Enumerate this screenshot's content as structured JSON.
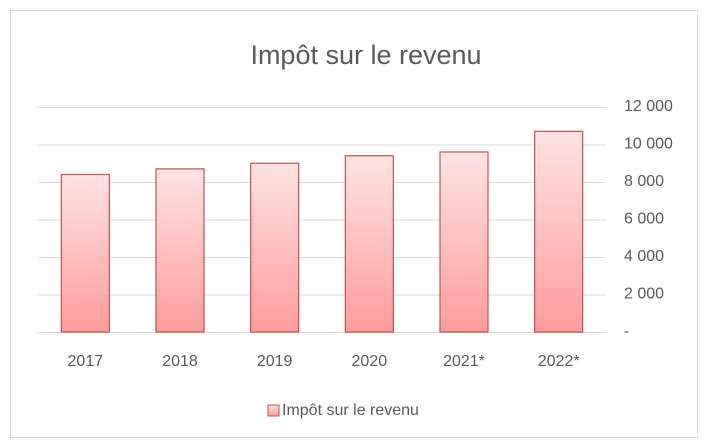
{
  "chart_data": {
    "type": "bar",
    "title": "Impôt sur le revenu",
    "categories": [
      "2017",
      "2018",
      "2019",
      "2020",
      "2021*",
      "2022*"
    ],
    "series": [
      {
        "name": "Impôt sur le revenu",
        "color": "#c0504d",
        "values": [
          8400,
          8700,
          9000,
          9400,
          9600,
          10700
        ]
      }
    ],
    "ylim": [
      0,
      12000
    ],
    "yticks": [
      {
        "value": 0,
        "label": "-"
      },
      {
        "value": 2000,
        "label": "2 000"
      },
      {
        "value": 4000,
        "label": "4 000"
      },
      {
        "value": 6000,
        "label": "6 000"
      },
      {
        "value": 8000,
        "label": "8 000"
      },
      {
        "value": 10000,
        "label": "10 000"
      },
      {
        "value": 12000,
        "label": "12 000"
      }
    ],
    "grid": true,
    "legend": "bottom"
  }
}
